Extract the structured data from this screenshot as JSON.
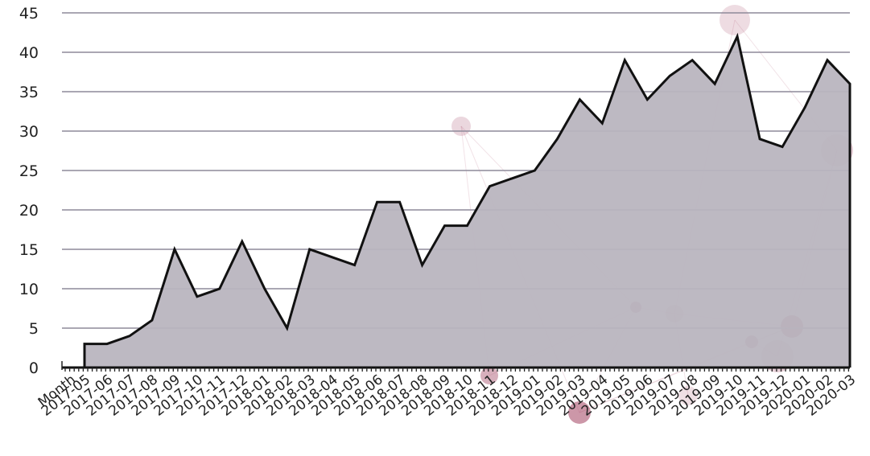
{
  "chart_data": {
    "type": "area",
    "x_header": "Month",
    "categories": [
      "2017-05",
      "2017-06",
      "2017-07",
      "2017-08",
      "2017-09",
      "2017-10",
      "2017-11",
      "2017-12",
      "2018-01",
      "2018-02",
      "2018-03",
      "2018-04",
      "2018-05",
      "2018-06",
      "2018-07",
      "2018-08",
      "2018-09",
      "2018-10",
      "2018-11",
      "2018-12",
      "2019-01",
      "2019-02",
      "2019-03",
      "2019-04",
      "2019-05",
      "2019-06",
      "2019-07",
      "2019-08",
      "2019-09",
      "2019-10",
      "2019-11",
      "2019-12",
      "2020-01",
      "2020-02",
      "2020-03"
    ],
    "values": [
      3,
      3,
      4,
      6,
      15,
      9,
      10,
      16,
      10,
      5,
      15,
      14,
      13,
      21,
      21,
      13,
      18,
      18,
      23,
      24,
      25,
      29,
      34,
      31,
      39,
      34,
      37,
      39,
      36,
      42,
      29,
      28,
      33,
      39,
      36
    ],
    "yticks": [
      0,
      5,
      10,
      15,
      20,
      25,
      30,
      35,
      40,
      45
    ],
    "ylim": [
      0,
      45
    ],
    "grid": true,
    "colors": {
      "fill": "#b9b5bf",
      "line": "#111111",
      "grid": "#8e8a9a",
      "decor": "#b0607a"
    }
  }
}
